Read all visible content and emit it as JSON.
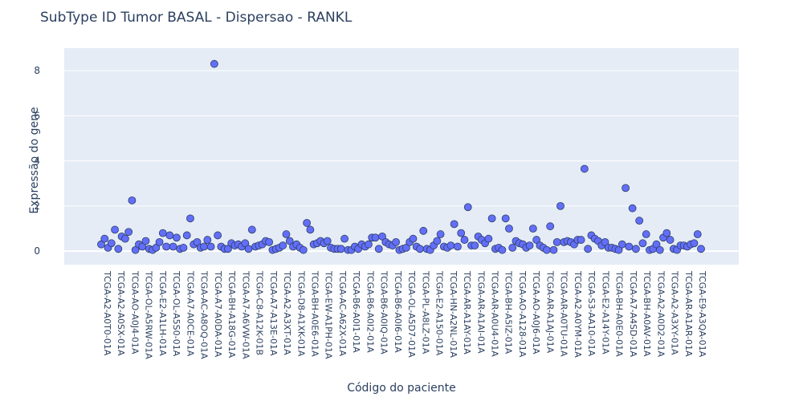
{
  "chart_data": {
    "type": "scatter",
    "title": "SubType ID Tumor BASAL - Dispersao - RANKL",
    "xlabel": "Código do paciente",
    "ylabel": "Expressão do gene",
    "ylim": [
      -0.6,
      9.0
    ],
    "yticks": [
      0,
      2,
      4,
      6,
      8
    ],
    "grid": true,
    "marker_color": "#636efa",
    "marker_edge": "#2a3f5f",
    "plot_bg": "#e5ecf6",
    "categories": [
      "TCGA-A2-A0T0-01A",
      "TCGA-A2-A0SX-01A",
      "TCGA-AO-A0J4-01A",
      "TCGA-OL-A5RW-01A",
      "TCGA-E2-A1LH-01A",
      "TCGA-OL-A5S0-01A",
      "TCGA-A7-A0CE-01A",
      "TCGA-AC-A8OQ-01A",
      "TCGA-A7-A0DA-01A",
      "TCGA-BH-A18G-01A",
      "TCGA-A7-A6VW-01A",
      "TCGA-C8-A12K-01B",
      "TCGA-A7-A13E-01A",
      "TCGA-A2-A3XT-01A",
      "TCGA-D8-A1XK-01A",
      "TCGA-BH-A0E6-01A",
      "TCGA-EW-A1PH-01A",
      "TCGA-AC-A62X-01A",
      "TCGA-B6-A0I1-01A",
      "TCGA-B6-A0I2-01A",
      "TCGA-B6-A0IQ-01A",
      "TCGA-B6-A0I6-01A",
      "TCGA-OL-A5D7-01A",
      "TCGA-PL-A8LZ-01A",
      "TCGA-E2-A150-01A",
      "TCGA-HN-A2NL-01A",
      "TCGA-AR-A1AY-01A",
      "TCGA-AR-A1AI-01A",
      "TCGA-AR-A0U4-01A",
      "TCGA-BH-A5IZ-01A",
      "TCGA-AO-A128-01A",
      "TCGA-AO-A0J6-01A",
      "TCGA-AR-A1AJ-01A",
      "TCGA-AR-A0TU-01A",
      "TCGA-A2-A0YM-01A",
      "TCGA-S3-AA10-01A",
      "TCGA-E2-A14Y-01A",
      "TCGA-BH-A0E0-01A",
      "TCGA-A7-A4SD-01A",
      "TCGA-BH-A0AV-01A",
      "TCGA-A2-A0D2-01A",
      "TCGA-A2-A3XY-01A",
      "TCGA-AR-A1AR-01A",
      "TCGA-E9-A3QA-01A"
    ],
    "values": [
      0.3,
      0.55,
      0.15,
      0.35,
      0.95,
      0.1,
      0.65,
      0.55,
      0.85,
      2.25,
      0.05,
      0.3,
      0.2,
      0.45,
      0.1,
      0.05,
      0.15,
      0.4,
      0.8,
      0.2,
      0.7,
      0.2,
      0.6,
      0.1,
      0.15,
      0.7,
      1.45,
      0.3,
      0.4,
      0.15,
      0.2,
      0.5,
      0.2,
      8.3,
      0.7,
      0.2,
      0.1,
      0.1,
      0.35,
      0.25,
      0.3,
      0.2,
      0.35,
      0.1,
      0.95,
      0.2,
      0.25,
      0.3,
      0.45,
      0.4,
      0.05,
      0.1,
      0.15,
      0.25,
      0.75,
      0.45,
      0.2,
      0.3,
      0.15,
      0.05,
      1.25,
      0.95,
      0.3,
      0.35,
      0.45,
      0.35,
      0.45,
      0.15,
      0.1,
      0.1,
      0.1,
      0.55,
      0.05,
      0.05,
      0.2,
      0.1,
      0.3,
      0.2,
      0.3,
      0.6,
      0.6,
      0.1,
      0.65,
      0.4,
      0.3,
      0.25,
      0.4,
      0.05,
      0.1,
      0.15,
      0.4,
      0.55,
      0.2,
      0.1,
      0.9,
      0.1,
      0.05,
      0.25,
      0.45,
      0.75,
      0.2,
      0.15,
      0.25,
      1.2,
      0.2,
      0.8,
      0.5,
      1.95,
      0.25,
      0.25,
      0.65,
      0.5,
      0.35,
      0.55,
      1.45,
      0.1,
      0.15,
      0.05,
      1.45,
      1.0,
      0.15,
      0.45,
      0.35,
      0.3,
      0.15,
      0.25,
      1.0,
      0.5,
      0.25,
      0.15,
      0.05,
      1.1,
      0.05,
      0.4,
      2.0,
      0.4,
      0.45,
      0.4,
      0.3,
      0.5,
      0.5,
      3.65,
      0.1,
      0.7,
      0.55,
      0.45,
      0.25,
      0.4,
      0.15,
      0.15,
      0.1,
      0.05,
      0.3,
      2.8,
      0.2,
      1.9,
      0.1,
      1.35,
      0.35,
      0.75,
      0.05,
      0.1,
      0.3,
      0.05,
      0.6,
      0.8,
      0.5,
      0.1,
      0.05,
      0.25,
      0.25,
      0.2,
      0.3,
      0.35,
      0.75,
      0.1
    ]
  }
}
